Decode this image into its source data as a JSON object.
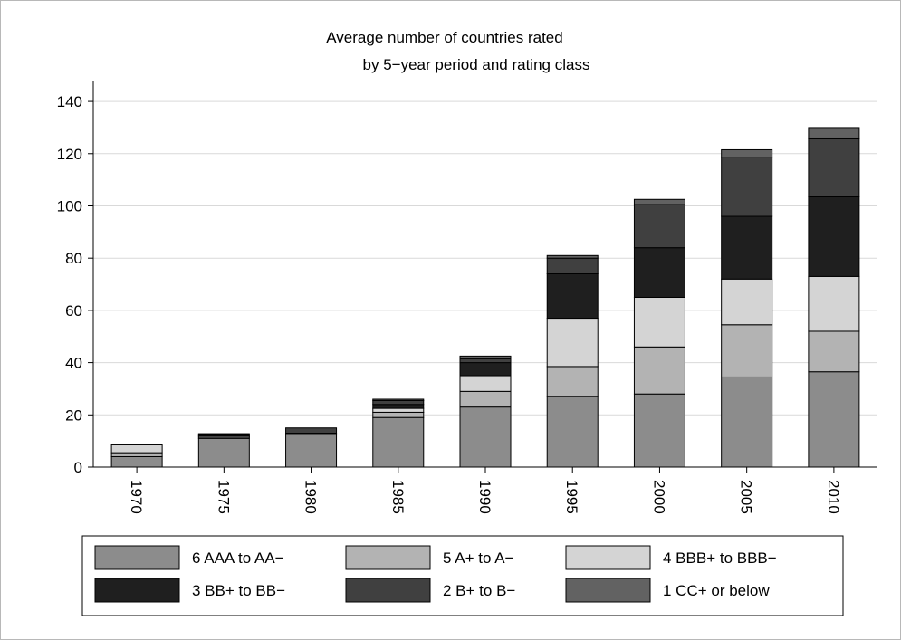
{
  "chart_data": {
    "type": "bar",
    "stacked": true,
    "title": "Average number of countries rated",
    "subtitle": "by 5−year period and rating class",
    "xlabel": "",
    "ylabel": "",
    "categories": [
      "1970",
      "1975",
      "1980",
      "1985",
      "1990",
      "1995",
      "2000",
      "2005",
      "2010"
    ],
    "ylim": [
      0,
      148
    ],
    "yticks": [
      "0",
      "20",
      "40",
      "60",
      "80",
      "100",
      "120",
      "140"
    ],
    "grid": "horizontal",
    "legend_position": "bottom",
    "series": [
      {
        "name": "6 AAA to AA−",
        "color": "#8c8c8c",
        "values": [
          4,
          11,
          12.5,
          19,
          23,
          27,
          28,
          34.5,
          36.5
        ]
      },
      {
        "name": "5 A+ to A−",
        "color": "#b3b3b3",
        "values": [
          1.5,
          0.5,
          0.5,
          2,
          6,
          11.5,
          18,
          20,
          15.5
        ]
      },
      {
        "name": "4 BBB+ to BBB−",
        "color": "#d4d4d4",
        "values": [
          3,
          0.5,
          0,
          1.5,
          6,
          18.5,
          19,
          17.5,
          21
        ]
      },
      {
        "name": "3 BB+ to BB−",
        "color": "#1f1f1f",
        "values": [
          0,
          0.5,
          0,
          1.5,
          5,
          17,
          19,
          24,
          30.5
        ]
      },
      {
        "name": "2 B+ to B−",
        "color": "#404040",
        "values": [
          0,
          0.3,
          2,
          1.5,
          1.5,
          6,
          16.5,
          22.5,
          22.5
        ]
      },
      {
        "name": "1 CC+ or below",
        "color": "#626262",
        "values": [
          0,
          0,
          0,
          0.5,
          1,
          1,
          2,
          3,
          4
        ]
      }
    ]
  }
}
